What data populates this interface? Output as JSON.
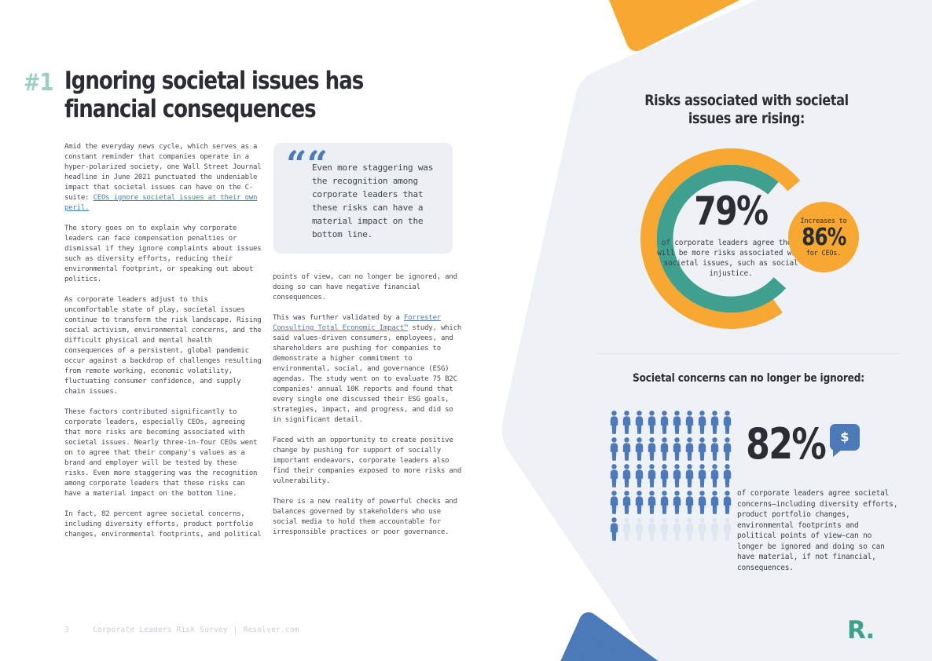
{
  "colors": {
    "teal": "#3FA08F",
    "teal_light": "#9CCEC4",
    "orange": "#F7A832",
    "blue": "#4C79B8",
    "blue_faded": "#DFE6F1",
    "panel": "#EEF1F5",
    "ink": "#2A2D33",
    "body": "#454B53",
    "link": "#4C79B8",
    "muted": "#C9CED6",
    "divider": "#DDE2E9",
    "quote_bg": "#ECF0F5"
  },
  "header": {
    "index": "#1",
    "title_line1": "Ignoring societal issues has",
    "title_line2": "financial consequences"
  },
  "left_column": {
    "paragraphs": [
      {
        "segments": [
          {
            "t": "Amid the everyday news cycle, which serves as a constant reminder that companies operate in a hyper-polarized society, one Wall Street Journal headline in June 2021 punctuated the undeniable impact that societal issues can have on the C-suite: "
          },
          {
            "t": "CEOs ignore societal issues at their own peril.",
            "link": true
          }
        ]
      },
      {
        "segments": [
          {
            "t": "The story goes on to explain why corporate leaders can face compensation penalties or dismissal if they ignore complaints about issues such as diversity efforts, reducing their environmental footprint, or speaking out about politics."
          }
        ]
      },
      {
        "segments": [
          {
            "t": "As corporate leaders adjust to this uncomfortable state of play, societal issues continue to transform the risk landscape. Rising social activism, environmental concerns, and the difficult physical and mental health consequences of a persistent, global pandemic occur against a backdrop of challenges resulting from remote working, economic volatility, fluctuating consumer confidence, and supply chain issues."
          }
        ]
      },
      {
        "segments": [
          {
            "t": "These factors contributed significantly to corporate leaders, especially CEOs, agreeing that more risks are becoming associated with societal issues. Nearly three-in-four CEOs went on to agree that their company's values as a brand and employer will be tested by these risks. Even more staggering was the recognition among corporate leaders that these risks can have a material impact on the bottom line."
          }
        ]
      },
      {
        "segments": [
          {
            "t": "In fact, 82 percent agree societal concerns, including diversity efforts, product portfolio changes, environmental footprints, and political"
          }
        ]
      }
    ]
  },
  "quote": {
    "mark": "“",
    "text": "Even more staggering was the recognition among corporate leaders that these risks can have a material impact on the bottom line."
  },
  "middle_column": {
    "paragraphs": [
      {
        "segments": [
          {
            "t": "points of view, can no longer be ignored, and doing so can have negative financial consequences."
          }
        ]
      },
      {
        "segments": [
          {
            "t": "This was further validated by a "
          },
          {
            "t": "Forrester Consulting Total Economic Impact™",
            "link": true
          },
          {
            "t": " study, which said values-driven consumers, employees, and shareholders are pushing for companies to demonstrate a higher commitment to environmental, social, and governance (ESG) agendas. The study went on to evaluate 75 B2C companies' annual 10K reports and found that every single one discussed their ESG goals, strategies, impact, and progress, and did so in significant detail."
          }
        ]
      },
      {
        "segments": [
          {
            "t": "Faced with an opportunity to create positive change by pushing for support of socially important endeavors, corporate leaders also find their companies exposed to more risks and vulnerability."
          }
        ]
      },
      {
        "segments": [
          {
            "t": "There is a new reality of powerful checks and balances governed by stakeholders who use social media to hold them accountable for irresponsible practices or poor governance."
          }
        ]
      }
    ]
  },
  "chart_data": [
    {
      "type": "donut",
      "title": "Risks associated with societal issues are rising:",
      "value_pct": 79,
      "value_label": "79%",
      "description": "of corporate leaders agree there will be more risks associated with societal issues, such as social injustice.",
      "ring_colors": [
        "#F7A832",
        "#3FA08F"
      ],
      "callout": {
        "label": "Increases to",
        "value_pct": 86,
        "value_label": "86%",
        "sublabel": "for CEOs."
      }
    },
    {
      "type": "pictogram",
      "title": "Societal concerns can no longer be ignored:",
      "value_pct": 82,
      "value_label": "82%",
      "total_icons": 50,
      "filled_icons": 41,
      "icon": "person",
      "dollar_icon": "$",
      "description": "of corporate leaders agree societal concerns—including diversity efforts, product portfolio changes, environmental footprints and political points of view—can no longer be ignored and doing so can have material, if not financial, consequences."
    }
  ],
  "footer": {
    "page_number": "3",
    "survey_title": "Corporate Leaders Risk Survey",
    "separator": "|",
    "site": "Resolver.com",
    "logo": "R."
  }
}
